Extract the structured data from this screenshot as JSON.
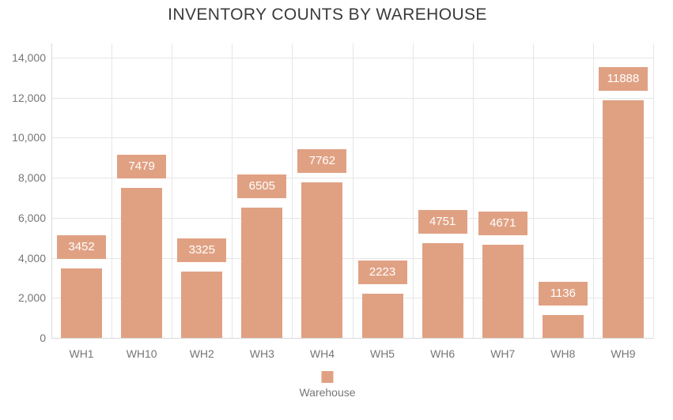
{
  "chart_data": {
    "type": "bar",
    "title": "INVENTORY COUNTS BY WAREHOUSE",
    "categories": [
      "WH1",
      "WH10",
      "WH2",
      "WH3",
      "WH4",
      "WH5",
      "WH6",
      "WH7",
      "WH8",
      "WH9"
    ],
    "values": [
      3452,
      7479,
      3325,
      6505,
      7762,
      2223,
      4751,
      4671,
      1136,
      11888
    ],
    "series_name": "Warehouse",
    "xlabel": "Warehouse",
    "ylabel": "",
    "ylim": [
      0,
      14000
    ],
    "ytick_step": 2000,
    "ytick_labels": [
      "0",
      "2,000",
      "4,000",
      "6,000",
      "8,000",
      "10,000",
      "12,000",
      "14,000"
    ],
    "grid": true,
    "data_labels_visible": true,
    "legend": {
      "position": "bottom",
      "label": "Warehouse"
    }
  },
  "colors": {
    "bar": "#E0A183",
    "data_label_bg": "#E0A183",
    "data_label_text": "#FFFFFF",
    "title": "#3A3A3A",
    "axis_label": "#767676",
    "gridline": "#E6E6E6",
    "axis_line": "#D9D9D9",
    "background": "#FFFFFF"
  }
}
